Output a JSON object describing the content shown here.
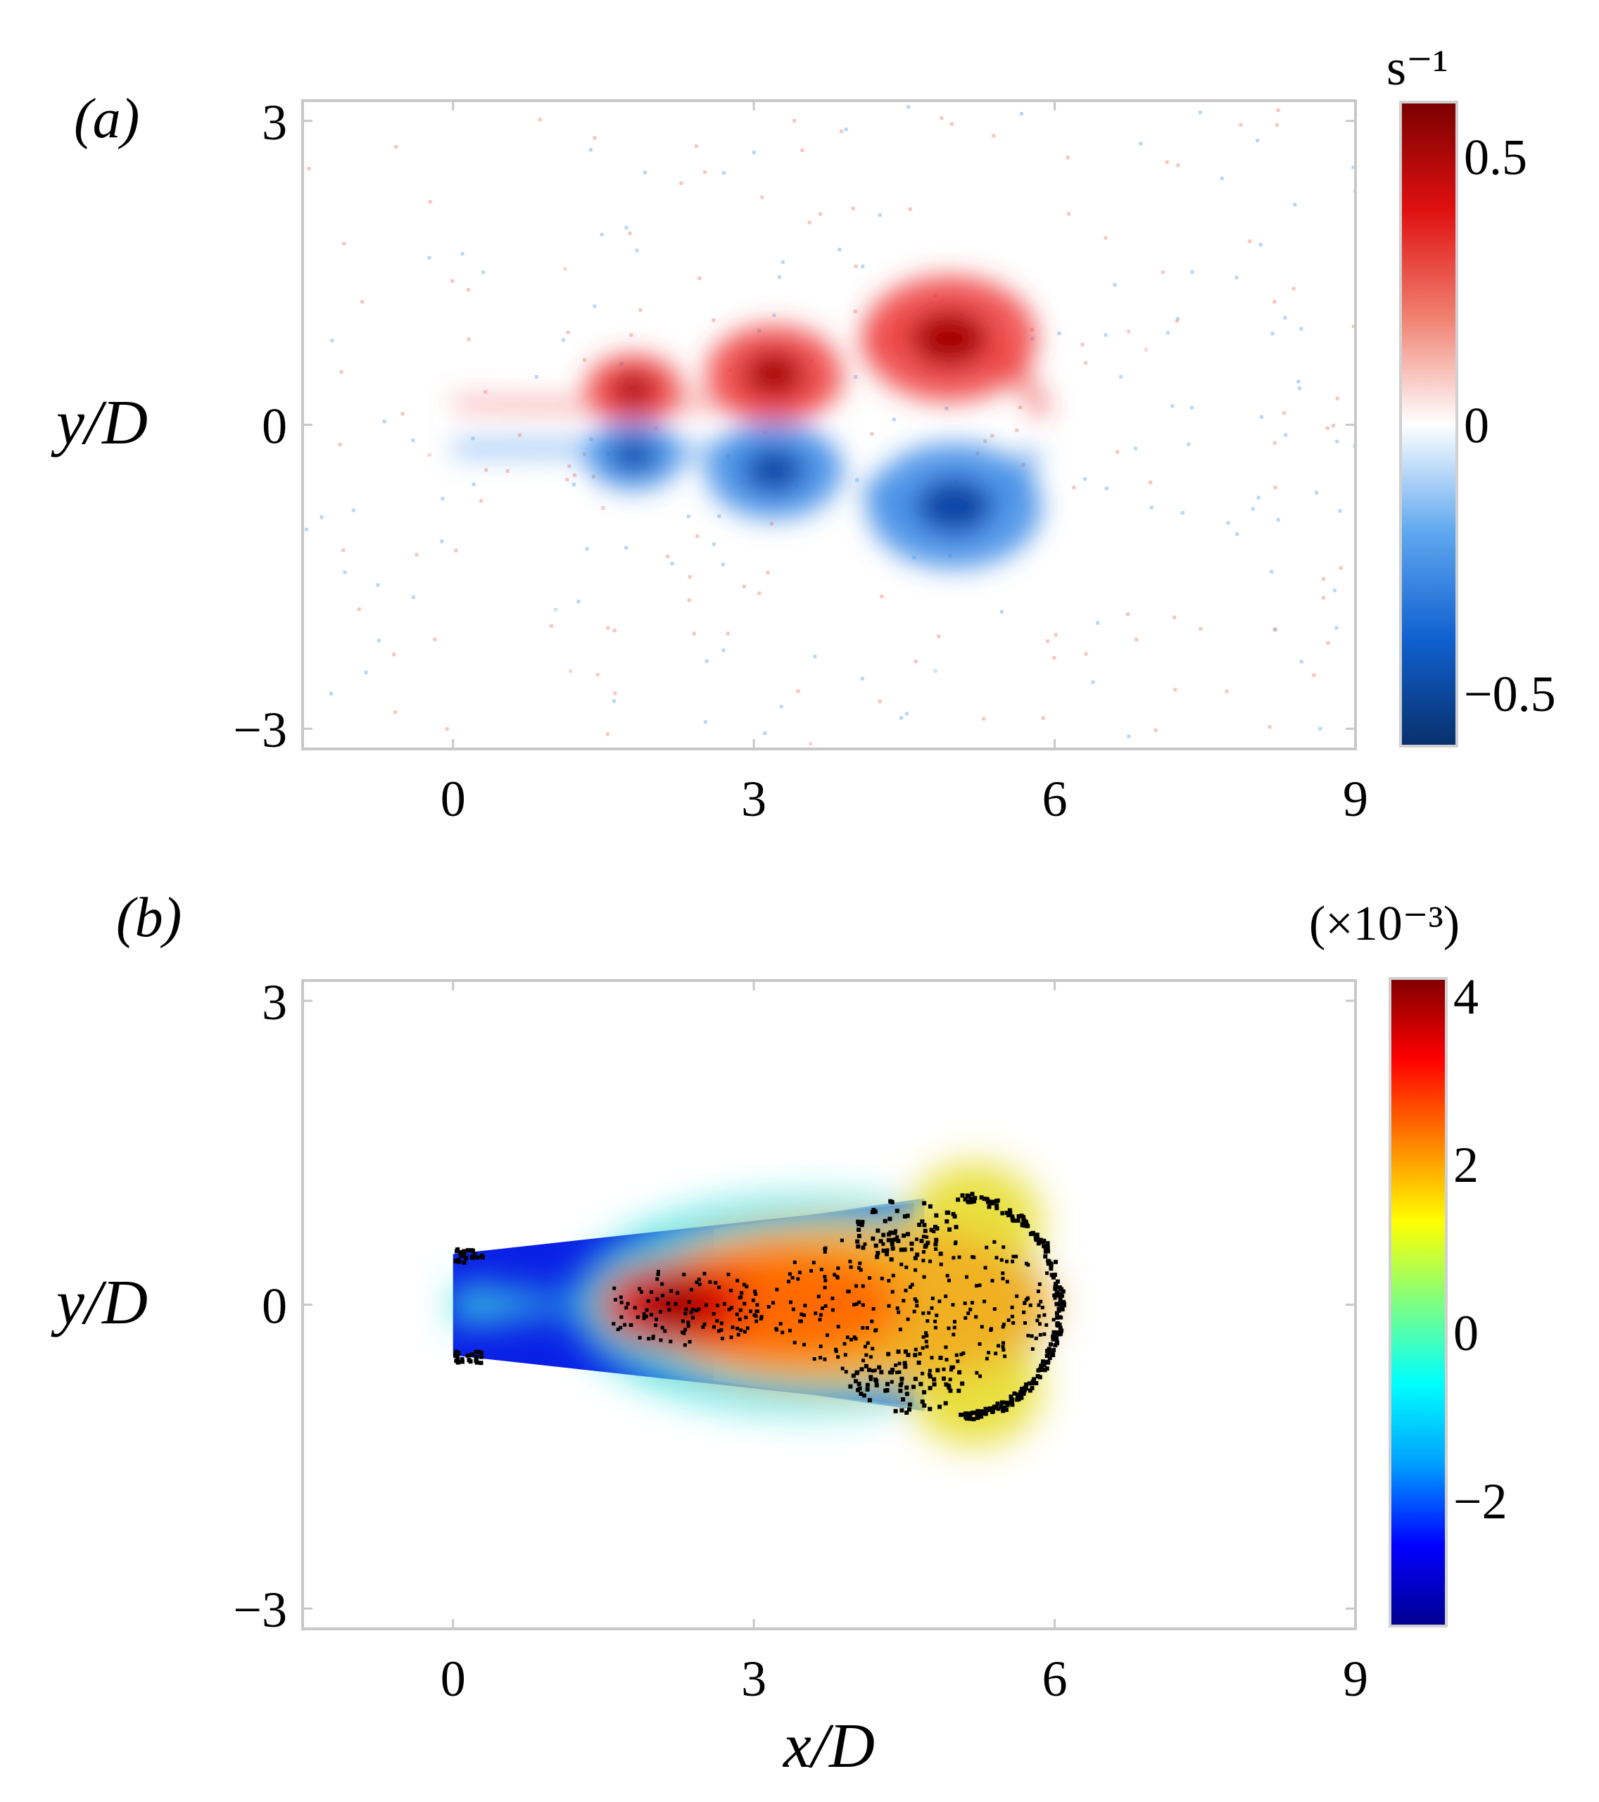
{
  "chart_data": [
    {
      "type": "heatmap",
      "panel_label": "(a)",
      "xlabel": "",
      "ylabel": "y/D",
      "xlim": [
        -1.5,
        9
      ],
      "ylim": [
        -3.2,
        3.2
      ],
      "xticks": [
        0,
        3,
        6,
        9
      ],
      "yticks": [
        3,
        0,
        -3
      ],
      "colorbar": {
        "unit": "s⁻¹",
        "range": [
          -0.6,
          0.6
        ],
        "ticks": [
          0.5,
          0,
          -0.5
        ],
        "tick_labels": [
          "0.5",
          "0",
          "−0.5"
        ],
        "colormap": [
          "#08306b",
          "#1060d0",
          "#60a8f0",
          "#ffffff",
          "#f08070",
          "#e01010",
          "#7a0000"
        ]
      },
      "features": [
        {
          "kind": "vortex",
          "sign": "positive",
          "x": 1.8,
          "y": 0.35,
          "strength": 0.5
        },
        {
          "kind": "vortex",
          "sign": "positive",
          "x": 3.2,
          "y": 0.5,
          "strength": 0.55
        },
        {
          "kind": "vortex",
          "sign": "positive",
          "x": 4.95,
          "y": 0.85,
          "strength": 0.6
        },
        {
          "kind": "vortex",
          "sign": "negative",
          "x": 1.8,
          "y": -0.3,
          "strength": -0.45
        },
        {
          "kind": "vortex",
          "sign": "negative",
          "x": 3.2,
          "y": -0.45,
          "strength": -0.5
        },
        {
          "kind": "vortex",
          "sign": "negative",
          "x": 5.0,
          "y": -0.8,
          "strength": -0.55
        }
      ]
    },
    {
      "type": "heatmap",
      "panel_label": "(b)",
      "xlabel": "x/D",
      "ylabel": "y/D",
      "xlim": [
        -1.5,
        9
      ],
      "ylim": [
        -3.2,
        3.2
      ],
      "xticks": [
        0,
        3,
        6,
        9
      ],
      "yticks": [
        3,
        0,
        -3
      ],
      "colorbar": {
        "unit": "(×10⁻³)",
        "range": [
          -3.5,
          4.2
        ],
        "ticks": [
          4,
          2,
          0,
          -2
        ],
        "tick_labels": [
          "4",
          "2",
          "0",
          "−2"
        ],
        "colormap": [
          "#00008f",
          "#0000ff",
          "#00a0ff",
          "#00ffff",
          "#80ff80",
          "#ffff00",
          "#ff8000",
          "#ff0000",
          "#800000"
        ]
      },
      "region": {
        "upstream_x": 0,
        "upstream_half_width": 0.5,
        "downstream_x": 5.9,
        "downstream_half_width": 1.1,
        "background_value": -3.0,
        "core_max_value": 4.0,
        "core_x": 2.2
      }
    }
  ]
}
